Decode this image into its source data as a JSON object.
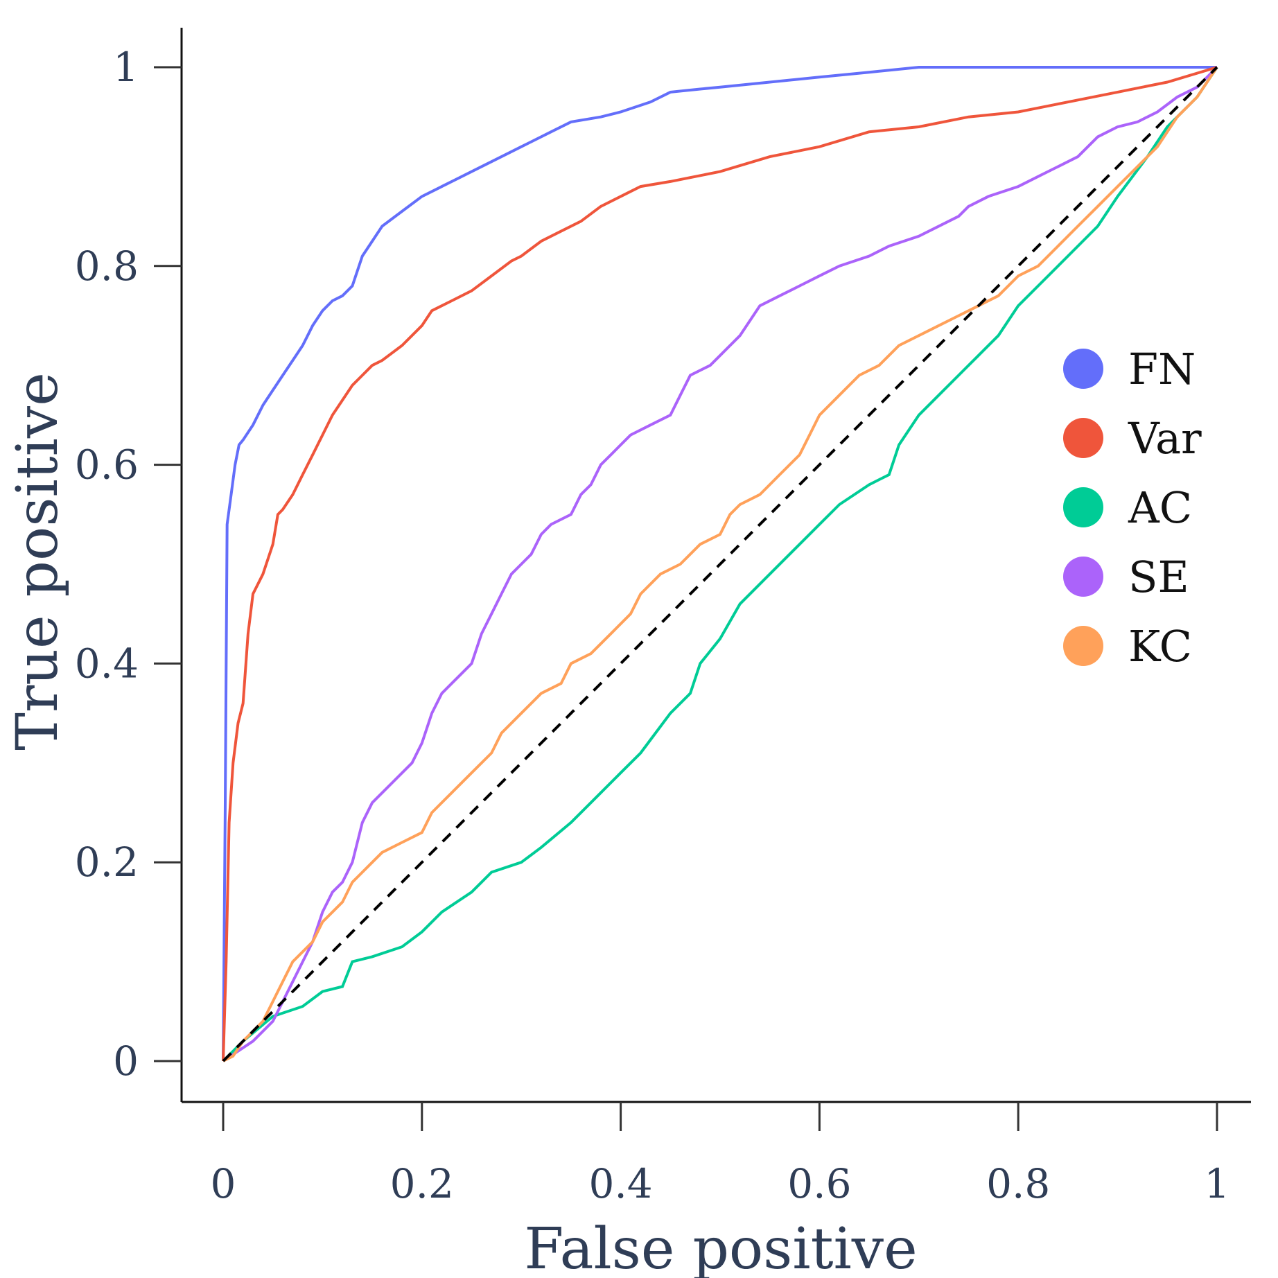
{
  "chart_data": {
    "type": "line",
    "xlabel": "False positive",
    "ylabel": "True positive",
    "xlim": [
      0,
      1
    ],
    "ylim": [
      0,
      1
    ],
    "x_ticks": [
      0,
      0.2,
      0.4,
      0.6,
      0.8,
      1
    ],
    "x_tick_labels": [
      "0",
      "0.2",
      "0.4",
      "0.6",
      "0.8",
      "1"
    ],
    "y_ticks": [
      0,
      0.2,
      0.4,
      0.6,
      0.8,
      1
    ],
    "y_tick_labels": [
      "0",
      "0.2",
      "0.4",
      "0.6",
      "0.8",
      "1"
    ],
    "grid": false,
    "legend_position": "right",
    "reference_line": {
      "style": "dashed",
      "color": "#000000",
      "points": [
        [
          0,
          0
        ],
        [
          1,
          1
        ]
      ]
    },
    "series": [
      {
        "name": "FN",
        "color": "#636efa",
        "points": [
          [
            0,
            0
          ],
          [
            0.002,
            0.25
          ],
          [
            0.004,
            0.54
          ],
          [
            0.008,
            0.57
          ],
          [
            0.012,
            0.6
          ],
          [
            0.016,
            0.62
          ],
          [
            0.02,
            0.625
          ],
          [
            0.03,
            0.64
          ],
          [
            0.04,
            0.66
          ],
          [
            0.05,
            0.675
          ],
          [
            0.06,
            0.69
          ],
          [
            0.07,
            0.705
          ],
          [
            0.08,
            0.72
          ],
          [
            0.09,
            0.74
          ],
          [
            0.1,
            0.755
          ],
          [
            0.11,
            0.765
          ],
          [
            0.12,
            0.77
          ],
          [
            0.13,
            0.78
          ],
          [
            0.14,
            0.81
          ],
          [
            0.15,
            0.825
          ],
          [
            0.16,
            0.84
          ],
          [
            0.18,
            0.855
          ],
          [
            0.2,
            0.87
          ],
          [
            0.22,
            0.88
          ],
          [
            0.25,
            0.895
          ],
          [
            0.28,
            0.91
          ],
          [
            0.3,
            0.92
          ],
          [
            0.33,
            0.935
          ],
          [
            0.35,
            0.945
          ],
          [
            0.38,
            0.95
          ],
          [
            0.4,
            0.955
          ],
          [
            0.43,
            0.965
          ],
          [
            0.45,
            0.975
          ],
          [
            0.48,
            0.978
          ],
          [
            0.5,
            0.98
          ],
          [
            0.55,
            0.985
          ],
          [
            0.6,
            0.99
          ],
          [
            0.65,
            0.995
          ],
          [
            0.7,
            1
          ],
          [
            0.8,
            1
          ],
          [
            0.9,
            1
          ],
          [
            1,
            1
          ]
        ]
      },
      {
        "name": "Var",
        "color": "#ef553b",
        "points": [
          [
            0,
            0
          ],
          [
            0.003,
            0.1
          ],
          [
            0.006,
            0.24
          ],
          [
            0.01,
            0.3
          ],
          [
            0.015,
            0.34
          ],
          [
            0.02,
            0.36
          ],
          [
            0.025,
            0.43
          ],
          [
            0.03,
            0.47
          ],
          [
            0.04,
            0.49
          ],
          [
            0.05,
            0.52
          ],
          [
            0.055,
            0.55
          ],
          [
            0.06,
            0.555
          ],
          [
            0.07,
            0.57
          ],
          [
            0.08,
            0.59
          ],
          [
            0.09,
            0.61
          ],
          [
            0.1,
            0.63
          ],
          [
            0.11,
            0.65
          ],
          [
            0.12,
            0.665
          ],
          [
            0.13,
            0.68
          ],
          [
            0.14,
            0.69
          ],
          [
            0.15,
            0.7
          ],
          [
            0.16,
            0.705
          ],
          [
            0.18,
            0.72
          ],
          [
            0.2,
            0.74
          ],
          [
            0.21,
            0.755
          ],
          [
            0.23,
            0.765
          ],
          [
            0.25,
            0.775
          ],
          [
            0.27,
            0.79
          ],
          [
            0.29,
            0.805
          ],
          [
            0.3,
            0.81
          ],
          [
            0.32,
            0.825
          ],
          [
            0.34,
            0.835
          ],
          [
            0.36,
            0.845
          ],
          [
            0.38,
            0.86
          ],
          [
            0.4,
            0.87
          ],
          [
            0.42,
            0.88
          ],
          [
            0.45,
            0.885
          ],
          [
            0.5,
            0.895
          ],
          [
            0.55,
            0.91
          ],
          [
            0.6,
            0.92
          ],
          [
            0.65,
            0.935
          ],
          [
            0.7,
            0.94
          ],
          [
            0.75,
            0.95
          ],
          [
            0.8,
            0.955
          ],
          [
            0.85,
            0.965
          ],
          [
            0.9,
            0.975
          ],
          [
            0.95,
            0.985
          ],
          [
            1,
            1
          ]
        ]
      },
      {
        "name": "AC",
        "color": "#00cc96",
        "points": [
          [
            0,
            0
          ],
          [
            0.02,
            0.02
          ],
          [
            0.05,
            0.045
          ],
          [
            0.08,
            0.055
          ],
          [
            0.1,
            0.07
          ],
          [
            0.12,
            0.075
          ],
          [
            0.13,
            0.1
          ],
          [
            0.15,
            0.105
          ],
          [
            0.18,
            0.115
          ],
          [
            0.2,
            0.13
          ],
          [
            0.22,
            0.15
          ],
          [
            0.25,
            0.17
          ],
          [
            0.27,
            0.19
          ],
          [
            0.3,
            0.2
          ],
          [
            0.32,
            0.215
          ],
          [
            0.35,
            0.24
          ],
          [
            0.38,
            0.27
          ],
          [
            0.4,
            0.29
          ],
          [
            0.42,
            0.31
          ],
          [
            0.45,
            0.35
          ],
          [
            0.47,
            0.37
          ],
          [
            0.48,
            0.4
          ],
          [
            0.5,
            0.425
          ],
          [
            0.52,
            0.46
          ],
          [
            0.55,
            0.49
          ],
          [
            0.58,
            0.52
          ],
          [
            0.6,
            0.54
          ],
          [
            0.62,
            0.56
          ],
          [
            0.65,
            0.58
          ],
          [
            0.67,
            0.59
          ],
          [
            0.68,
            0.62
          ],
          [
            0.7,
            0.65
          ],
          [
            0.72,
            0.67
          ],
          [
            0.74,
            0.69
          ],
          [
            0.76,
            0.71
          ],
          [
            0.78,
            0.73
          ],
          [
            0.8,
            0.76
          ],
          [
            0.82,
            0.78
          ],
          [
            0.85,
            0.81
          ],
          [
            0.88,
            0.84
          ],
          [
            0.9,
            0.87
          ],
          [
            0.93,
            0.91
          ],
          [
            0.95,
            0.94
          ],
          [
            0.98,
            0.97
          ],
          [
            1,
            1
          ]
        ]
      },
      {
        "name": "SE",
        "color": "#ab63fa",
        "points": [
          [
            0,
            0
          ],
          [
            0.03,
            0.02
          ],
          [
            0.05,
            0.04
          ],
          [
            0.07,
            0.08
          ],
          [
            0.09,
            0.12
          ],
          [
            0.1,
            0.15
          ],
          [
            0.11,
            0.17
          ],
          [
            0.12,
            0.18
          ],
          [
            0.13,
            0.2
          ],
          [
            0.14,
            0.24
          ],
          [
            0.15,
            0.26
          ],
          [
            0.17,
            0.28
          ],
          [
            0.19,
            0.3
          ],
          [
            0.2,
            0.32
          ],
          [
            0.21,
            0.35
          ],
          [
            0.22,
            0.37
          ],
          [
            0.23,
            0.38
          ],
          [
            0.24,
            0.39
          ],
          [
            0.25,
            0.4
          ],
          [
            0.26,
            0.43
          ],
          [
            0.27,
            0.45
          ],
          [
            0.28,
            0.47
          ],
          [
            0.29,
            0.49
          ],
          [
            0.3,
            0.5
          ],
          [
            0.31,
            0.51
          ],
          [
            0.32,
            0.53
          ],
          [
            0.33,
            0.54
          ],
          [
            0.35,
            0.55
          ],
          [
            0.36,
            0.57
          ],
          [
            0.37,
            0.58
          ],
          [
            0.38,
            0.6
          ],
          [
            0.39,
            0.61
          ],
          [
            0.4,
            0.62
          ],
          [
            0.41,
            0.63
          ],
          [
            0.43,
            0.64
          ],
          [
            0.45,
            0.65
          ],
          [
            0.46,
            0.67
          ],
          [
            0.47,
            0.69
          ],
          [
            0.49,
            0.7
          ],
          [
            0.5,
            0.71
          ],
          [
            0.52,
            0.73
          ],
          [
            0.54,
            0.76
          ],
          [
            0.56,
            0.77
          ],
          [
            0.58,
            0.78
          ],
          [
            0.6,
            0.79
          ],
          [
            0.62,
            0.8
          ],
          [
            0.65,
            0.81
          ],
          [
            0.67,
            0.82
          ],
          [
            0.7,
            0.83
          ],
          [
            0.72,
            0.84
          ],
          [
            0.74,
            0.85
          ],
          [
            0.75,
            0.86
          ],
          [
            0.77,
            0.87
          ],
          [
            0.8,
            0.88
          ],
          [
            0.82,
            0.89
          ],
          [
            0.84,
            0.9
          ],
          [
            0.86,
            0.91
          ],
          [
            0.88,
            0.93
          ],
          [
            0.9,
            0.94
          ],
          [
            0.92,
            0.945
          ],
          [
            0.94,
            0.955
          ],
          [
            0.96,
            0.97
          ],
          [
            0.98,
            0.98
          ],
          [
            1,
            1
          ]
        ]
      },
      {
        "name": "KC",
        "color": "#ffa15a",
        "points": [
          [
            0,
            0
          ],
          [
            0.01,
            0.005
          ],
          [
            0.02,
            0.02
          ],
          [
            0.04,
            0.04
          ],
          [
            0.05,
            0.06
          ],
          [
            0.06,
            0.08
          ],
          [
            0.07,
            0.1
          ],
          [
            0.08,
            0.11
          ],
          [
            0.09,
            0.12
          ],
          [
            0.1,
            0.14
          ],
          [
            0.11,
            0.15
          ],
          [
            0.12,
            0.16
          ],
          [
            0.13,
            0.18
          ],
          [
            0.14,
            0.19
          ],
          [
            0.15,
            0.2
          ],
          [
            0.16,
            0.21
          ],
          [
            0.18,
            0.22
          ],
          [
            0.2,
            0.23
          ],
          [
            0.21,
            0.25
          ],
          [
            0.23,
            0.27
          ],
          [
            0.25,
            0.29
          ],
          [
            0.27,
            0.31
          ],
          [
            0.28,
            0.33
          ],
          [
            0.3,
            0.35
          ],
          [
            0.32,
            0.37
          ],
          [
            0.34,
            0.38
          ],
          [
            0.35,
            0.4
          ],
          [
            0.37,
            0.41
          ],
          [
            0.39,
            0.43
          ],
          [
            0.41,
            0.45
          ],
          [
            0.42,
            0.47
          ],
          [
            0.44,
            0.49
          ],
          [
            0.46,
            0.5
          ],
          [
            0.48,
            0.52
          ],
          [
            0.5,
            0.53
          ],
          [
            0.51,
            0.55
          ],
          [
            0.52,
            0.56
          ],
          [
            0.54,
            0.57
          ],
          [
            0.56,
            0.59
          ],
          [
            0.58,
            0.61
          ],
          [
            0.59,
            0.63
          ],
          [
            0.6,
            0.65
          ],
          [
            0.62,
            0.67
          ],
          [
            0.64,
            0.69
          ],
          [
            0.66,
            0.7
          ],
          [
            0.68,
            0.72
          ],
          [
            0.7,
            0.73
          ],
          [
            0.72,
            0.74
          ],
          [
            0.74,
            0.75
          ],
          [
            0.76,
            0.76
          ],
          [
            0.78,
            0.77
          ],
          [
            0.8,
            0.79
          ],
          [
            0.82,
            0.8
          ],
          [
            0.84,
            0.82
          ],
          [
            0.86,
            0.84
          ],
          [
            0.88,
            0.86
          ],
          [
            0.9,
            0.88
          ],
          [
            0.92,
            0.9
          ],
          [
            0.94,
            0.92
          ],
          [
            0.96,
            0.95
          ],
          [
            0.98,
            0.97
          ],
          [
            1,
            1
          ]
        ]
      }
    ]
  }
}
